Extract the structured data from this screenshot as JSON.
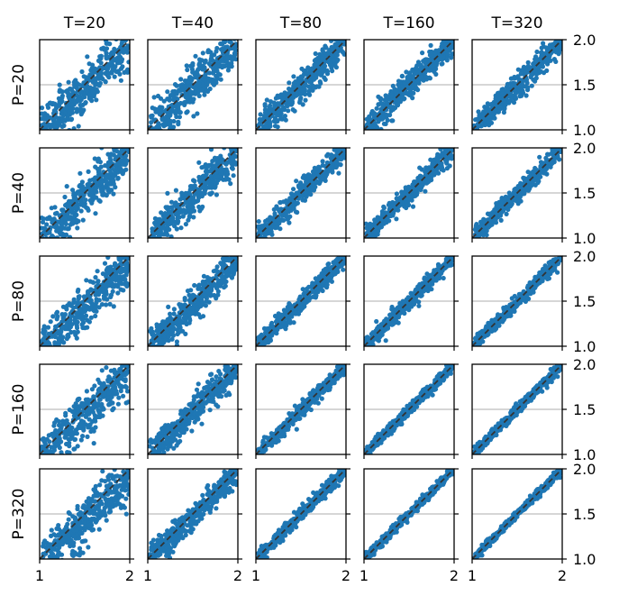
{
  "chart_data": {
    "type": "scatter",
    "title": "",
    "layout": "5x5 grid of scatter panels",
    "column_labels": [
      "T=20",
      "T=40",
      "T=80",
      "T=160",
      "T=320"
    ],
    "row_labels": [
      "P=20",
      "P=40",
      "P=80",
      "P=160",
      "P=320"
    ],
    "xlim": [
      1,
      2
    ],
    "ylim": [
      1,
      2
    ],
    "x_tick_labels": [
      "1",
      "2"
    ],
    "y_tick_labels": [
      "1.0",
      "1.5",
      "2.0"
    ],
    "reference_line": {
      "style": "dashed",
      "from": [
        1,
        1
      ],
      "to": [
        2,
        2
      ]
    },
    "horizontal_gridline_y": 1.5,
    "grid": false,
    "point_color": "#1f77b4",
    "points_per_panel": "several hundred (estimated)",
    "panel_noise_scale": [
      [
        0.13,
        0.12,
        0.085,
        0.075,
        0.07
      ],
      [
        0.12,
        0.1,
        0.065,
        0.055,
        0.05
      ],
      [
        0.12,
        0.085,
        0.05,
        0.042,
        0.036
      ],
      [
        0.12,
        0.075,
        0.04,
        0.032,
        0.027
      ],
      [
        0.11,
        0.07,
        0.034,
        0.026,
        0.022
      ]
    ],
    "panel_downward_bias": [
      [
        0.06,
        0.04,
        0.02,
        0.01,
        0.01
      ],
      [
        0.07,
        0.04,
        0.015,
        0.01,
        0.005
      ],
      [
        0.08,
        0.045,
        0.015,
        0.008,
        0.005
      ],
      [
        0.09,
        0.04,
        0.012,
        0.006,
        0.004
      ],
      [
        0.1,
        0.04,
        0.01,
        0.005,
        0.003
      ]
    ]
  }
}
